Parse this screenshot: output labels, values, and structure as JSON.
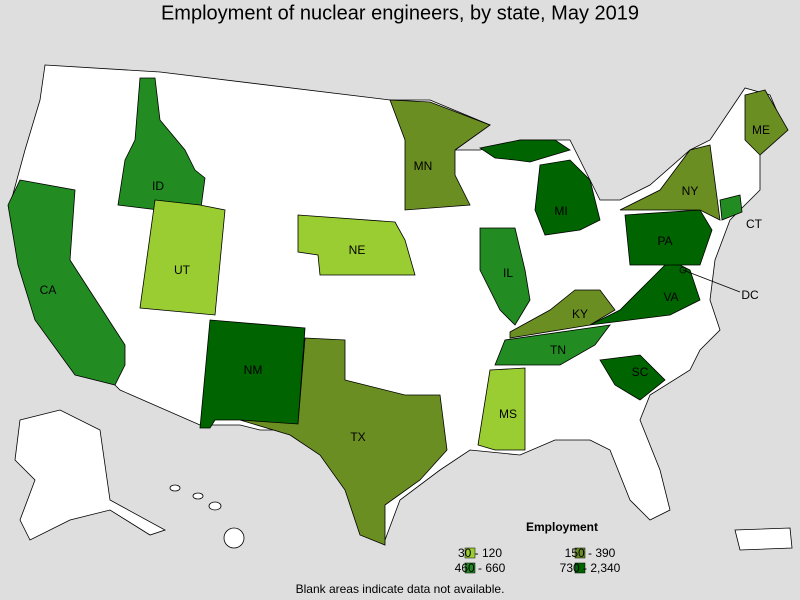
{
  "title": "Employment of nuclear engineers, by state, May 2019",
  "legend": {
    "title": "Employment",
    "items": [
      {
        "label": "30 - 120",
        "color": "#9acd32"
      },
      {
        "label": "150 - 390",
        "color": "#6b8e23"
      },
      {
        "label": "460 - 660",
        "color": "#228b22"
      },
      {
        "label": "730 - 2,340",
        "color": "#006400"
      }
    ]
  },
  "states": [
    {
      "label": "ID",
      "color": "#228b22"
    },
    {
      "label": "CA",
      "color": "#228b22"
    },
    {
      "label": "UT",
      "color": "#9acd32"
    },
    {
      "label": "NE",
      "color": "#9acd32"
    },
    {
      "label": "MN",
      "color": "#6b8e23"
    },
    {
      "label": "NM",
      "color": "#006400"
    },
    {
      "label": "TX",
      "color": "#6b8e23"
    },
    {
      "label": "IL",
      "color": "#228b22"
    },
    {
      "label": "MI",
      "color": "#006400"
    },
    {
      "label": "KY",
      "color": "#6b8e23"
    },
    {
      "label": "TN",
      "color": "#228b22"
    },
    {
      "label": "MS",
      "color": "#9acd32"
    },
    {
      "label": "SC",
      "color": "#006400"
    },
    {
      "label": "VA",
      "color": "#006400"
    },
    {
      "label": "PA",
      "color": "#006400"
    },
    {
      "label": "NY",
      "color": "#6b8e23"
    },
    {
      "label": "ME",
      "color": "#6b8e23"
    },
    {
      "label": "CT",
      "color": "#228b22"
    },
    {
      "label": "DC",
      "color": "#006400"
    }
  ],
  "note": "Blank areas indicate data not available."
}
